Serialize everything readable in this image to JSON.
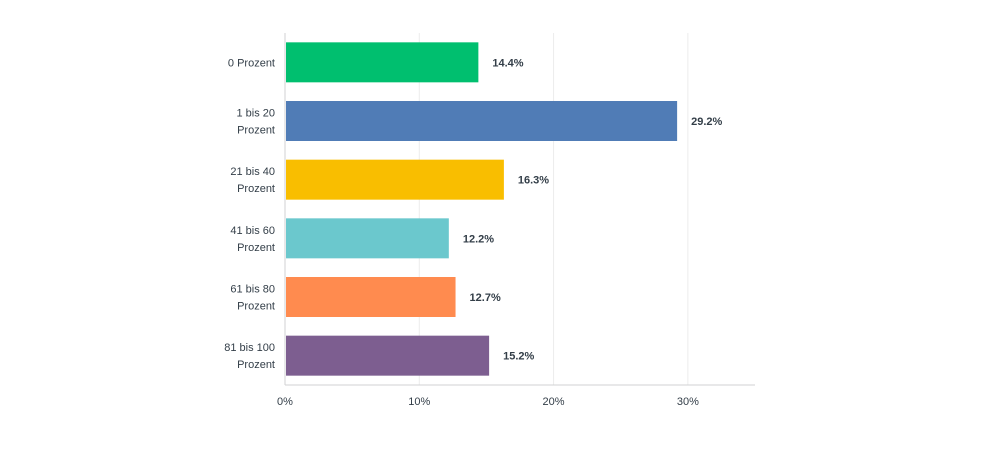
{
  "chart_data": {
    "type": "bar",
    "orientation": "horizontal",
    "categories": [
      [
        "0 Prozent"
      ],
      [
        "1 bis 20",
        "Prozent"
      ],
      [
        "21 bis 40",
        "Prozent"
      ],
      [
        "41 bis 60",
        "Prozent"
      ],
      [
        "61 bis 80",
        "Prozent"
      ],
      [
        "81 bis 100",
        "Prozent"
      ]
    ],
    "values": [
      14.4,
      29.2,
      16.3,
      12.2,
      12.7,
      15.2
    ],
    "value_labels": [
      "14.4%",
      "29.2%",
      "16.3%",
      "12.2%",
      "12.7%",
      "15.2%"
    ],
    "colors": [
      "#00bf6f",
      "#507cb6",
      "#f9be00",
      "#6bc8cd",
      "#ff8b4f",
      "#7d5e90"
    ],
    "xlim": [
      0,
      35
    ],
    "xticks": [
      0,
      10,
      20,
      30
    ],
    "xtick_labels": [
      "0%",
      "10%",
      "20%",
      "30%"
    ],
    "grid": true,
    "title": "",
    "xlabel": "",
    "ylabel": ""
  }
}
